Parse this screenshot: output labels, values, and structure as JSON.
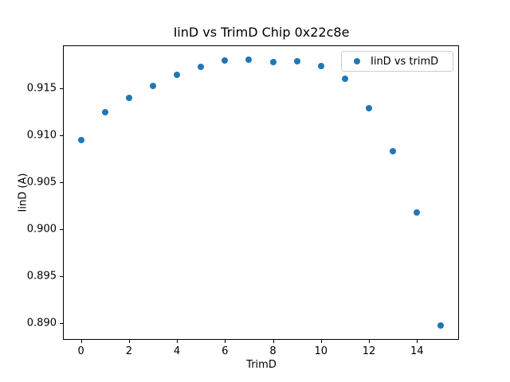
{
  "chart_data": {
    "type": "scatter",
    "title": "IinD vs TrimD Chip 0x22c8e",
    "xlabel": "TrimD",
    "ylabel": "IinD (A)",
    "legend_label": "IinD vs trimD",
    "legend_position": "upper right",
    "grid": false,
    "marker_color": "#1f77b4",
    "x": [
      0,
      1,
      2,
      3,
      4,
      5,
      6,
      7,
      8,
      9,
      10,
      11,
      12,
      13,
      14,
      15
    ],
    "y": [
      0.9095,
      0.9125,
      0.914,
      0.9153,
      0.9165,
      0.9173,
      0.918,
      0.9181,
      0.9178,
      0.9179,
      0.9174,
      0.916,
      0.9129,
      0.9083,
      0.9018,
      0.8897
    ],
    "xlim": [
      -0.75,
      15.75
    ],
    "ylim": [
      0.8882,
      0.9196
    ],
    "x_ticks": [
      0,
      2,
      4,
      6,
      8,
      10,
      12,
      14
    ],
    "y_ticks": [
      "0.890",
      "0.895",
      "0.900",
      "0.905",
      "0.910",
      "0.915"
    ]
  }
}
